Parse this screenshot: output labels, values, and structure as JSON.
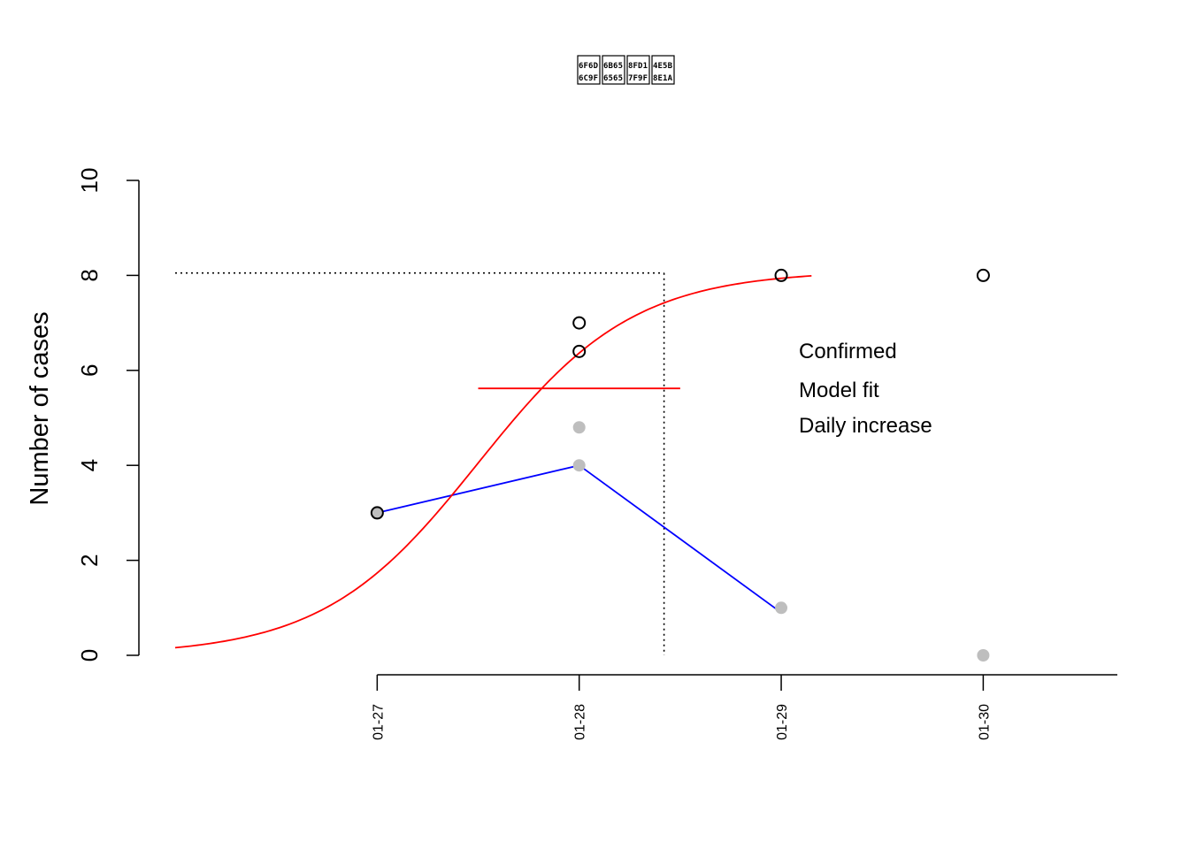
{
  "chart_data": {
    "type": "scatter",
    "title_glyphs": [
      "U+6F6D U+6C9F",
      "U+6B65 U+6565",
      "U+8FD1 U+7F9F",
      "U+4E5B U+8E1A"
    ],
    "ylabel": "Number of cases",
    "xlabel": "",
    "ylim": [
      0,
      10
    ],
    "yticks": [
      0,
      2,
      4,
      6,
      8,
      10
    ],
    "x_categories": [
      "01-27",
      "01-28",
      "01-29",
      "01-30"
    ],
    "xlim": [
      -1,
      3.55
    ],
    "grid": false,
    "legend": {
      "position": "center-right",
      "entries": [
        "Confirmed",
        "Model fit",
        "Daily increase"
      ]
    },
    "series": [
      {
        "name": "Confirmed",
        "kind": "points-open",
        "color": "#000000",
        "points": [
          [
            0,
            3
          ],
          [
            1,
            7
          ],
          [
            1,
            6.4
          ],
          [
            2,
            8
          ],
          [
            3,
            8
          ]
        ]
      },
      {
        "name": "Daily increase",
        "kind": "points-filled",
        "color": "#bebebe",
        "points": [
          [
            0,
            3
          ],
          [
            1,
            4.8
          ],
          [
            1,
            4
          ],
          [
            2,
            1
          ],
          [
            3,
            0
          ]
        ]
      },
      {
        "name": "Daily increase",
        "kind": "line",
        "color": "#0000ff",
        "points": [
          [
            0,
            3
          ],
          [
            1,
            4
          ],
          [
            2,
            0.9
          ]
        ]
      },
      {
        "name": "Model fit",
        "kind": "curve",
        "color": "#ff0000",
        "logistic": {
          "K": 8.1,
          "r": 2.6,
          "x0": 0.5
        },
        "x_range": [
          -1,
          2.15
        ]
      }
    ],
    "annotations": {
      "plateau_y": 8.05,
      "inflection_x": 1.42,
      "legend_line_y": 5.62,
      "legend_line_x": [
        0.5,
        1.5
      ]
    }
  }
}
